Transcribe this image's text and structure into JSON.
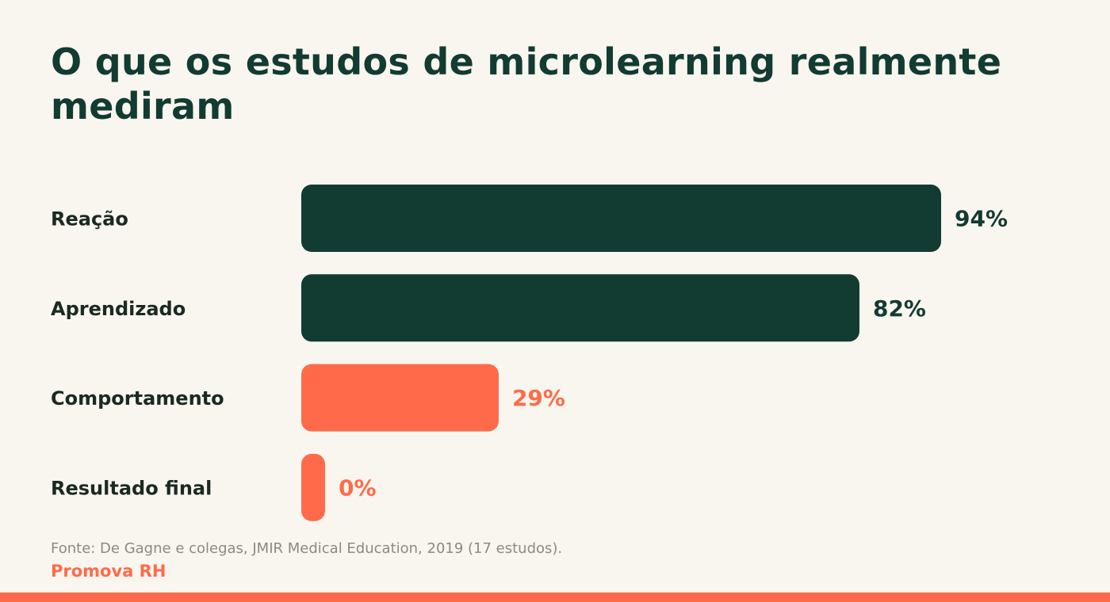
{
  "chart_data": {
    "type": "bar",
    "orientation": "horizontal",
    "title": "O que os estudos de microlearning realmente mediram",
    "categories": [
      "Reação",
      "Aprendizado",
      "Comportamento",
      "Resultado final"
    ],
    "values": [
      94,
      82,
      29,
      0
    ],
    "value_labels": [
      "94%",
      "82%",
      "29%",
      "0%"
    ],
    "colors": [
      "#123b32",
      "#123b32",
      "#ff6b4a",
      "#ff6b4a"
    ],
    "xlim": [
      0,
      100
    ],
    "source": "Fonte: De Gagne e colegas, JMIR Medical Education, 2019 (17 estudos).",
    "brand": "Promova RH"
  }
}
